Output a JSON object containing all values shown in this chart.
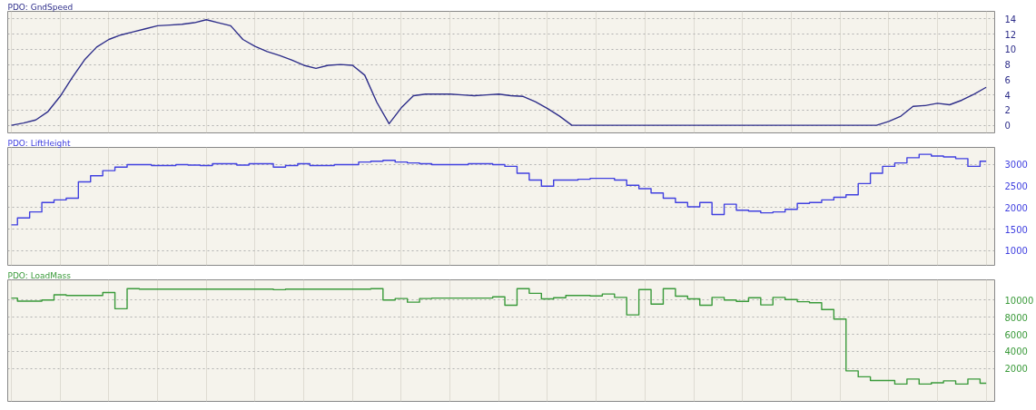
{
  "chart_data": [
    {
      "type": "line",
      "title": "PDO: GndSpeed",
      "categories": [
        null,
        null,
        null,
        null,
        null,
        null,
        null,
        null,
        null,
        null,
        null,
        null,
        null,
        null,
        null,
        null,
        null,
        null,
        null,
        null,
        null,
        null,
        null,
        null,
        null,
        null,
        null,
        null,
        null,
        null,
        null,
        null,
        null,
        null,
        null,
        null,
        null,
        null,
        null,
        null,
        null,
        null,
        null,
        null,
        null,
        null,
        null,
        null,
        null,
        null,
        null,
        null,
        null,
        null,
        null,
        null,
        null,
        null,
        null,
        null,
        null,
        null,
        null,
        null,
        null,
        null,
        null,
        null,
        null,
        null,
        null,
        null,
        null,
        null,
        null,
        null,
        null,
        null,
        null,
        null,
        null
      ],
      "series": [
        {
          "color": "#2e2e8a",
          "values": [
            0,
            0.3,
            0.7,
            1.8,
            3.8,
            6.3,
            8.6,
            10.3,
            11.3,
            11.9,
            12.3,
            12.7,
            13.1,
            13.2,
            13.3,
            13.5,
            13.9,
            13.5,
            13.1,
            11.3,
            10.4,
            9.7,
            9.2,
            8.6,
            7.9,
            7.5,
            7.9,
            8,
            7.9,
            6.6,
            3,
            0.2,
            2.3,
            3.9,
            4.1,
            4.1,
            4.1,
            4,
            3.9,
            4,
            4.1,
            3.9,
            3.8,
            3.1,
            2.2,
            1.2,
            0,
            0,
            0,
            0,
            0,
            0,
            0,
            0,
            0,
            0,
            0,
            0,
            0,
            0,
            0,
            0,
            0,
            0,
            0,
            0,
            0,
            0,
            0,
            0,
            0,
            0,
            0.5,
            1.2,
            2.5,
            2.6,
            2.9,
            2.7,
            3.3,
            4.1,
            5
          ]
        }
      ],
      "ylim": [
        -1,
        15
      ],
      "yticks": [
        0,
        2,
        4,
        6,
        8,
        10,
        12,
        14
      ],
      "grid": true,
      "tick_labels": "y"
    },
    {
      "type": "step",
      "title": "PDO: LiftHeight",
      "categories": [
        null,
        null,
        null,
        null,
        null,
        null,
        null,
        null,
        null,
        null,
        null,
        null,
        null,
        null,
        null,
        null,
        null,
        null,
        null,
        null,
        null,
        null,
        null,
        null,
        null,
        null,
        null,
        null,
        null,
        null,
        null,
        null,
        null,
        null,
        null,
        null,
        null,
        null,
        null,
        null,
        null,
        null,
        null,
        null,
        null,
        null,
        null,
        null,
        null,
        null,
        null,
        null,
        null,
        null,
        null,
        null,
        null,
        null,
        null,
        null,
        null,
        null,
        null,
        null,
        null,
        null,
        null,
        null,
        null,
        null,
        null,
        null,
        null,
        null,
        null,
        null,
        null,
        null,
        null,
        null,
        null
      ],
      "series": [
        {
          "color": "#4040e0",
          "values": [
            1600,
            1760,
            1900,
            2120,
            2180,
            2220,
            2600,
            2740,
            2860,
            2940,
            3000,
            3000,
            2980,
            2980,
            3000,
            2990,
            2980,
            3020,
            3020,
            2990,
            3020,
            3020,
            2940,
            2980,
            3020,
            2980,
            2980,
            3000,
            3000,
            3060,
            3080,
            3100,
            3060,
            3040,
            3020,
            3000,
            3000,
            3000,
            3020,
            3020,
            3000,
            2960,
            2800,
            2640,
            2500,
            2640,
            2640,
            2660,
            2680,
            2680,
            2640,
            2520,
            2440,
            2340,
            2220,
            2120,
            2020,
            2120,
            1840,
            2080,
            1940,
            1920,
            1880,
            1900,
            1960,
            2100,
            2120,
            2180,
            2240,
            2300,
            2560,
            2800,
            2960,
            3040,
            3160,
            3240,
            3200,
            3180,
            3140,
            2960,
            3080
          ]
        }
      ],
      "ylim": [
        660,
        3400
      ],
      "yticks": [
        1000,
        1500,
        2000,
        2500,
        3000
      ],
      "grid": true,
      "tick_labels": "y"
    },
    {
      "type": "step",
      "title": "PDO: LoadMass",
      "categories": [
        null,
        null,
        null,
        null,
        null,
        null,
        null,
        null,
        null,
        null,
        null,
        null,
        null,
        null,
        null,
        null,
        null,
        null,
        null,
        null,
        null,
        null,
        null,
        null,
        null,
        null,
        null,
        null,
        null,
        null,
        null,
        null,
        null,
        null,
        null,
        null,
        null,
        null,
        null,
        null,
        null,
        null,
        null,
        null,
        null,
        null,
        null,
        null,
        null,
        null,
        null,
        null,
        null,
        null,
        null,
        null,
        null,
        null,
        null,
        null,
        null,
        null,
        null,
        null,
        null,
        null,
        null,
        null,
        null,
        null,
        null,
        null,
        null,
        null,
        null,
        null,
        null,
        null,
        null,
        null,
        null
      ],
      "series": [
        {
          "color": "#3a9a3a",
          "values": [
            10220,
            9870,
            9870,
            10000,
            10600,
            10520,
            10520,
            10520,
            10870,
            8980,
            11320,
            11260,
            11260,
            11260,
            11260,
            11260,
            11260,
            11260,
            11260,
            11260,
            11260,
            11260,
            11200,
            11260,
            11260,
            11260,
            11260,
            11260,
            11260,
            11260,
            11320,
            10000,
            10170,
            9740,
            10170,
            10220,
            10220,
            10220,
            10220,
            10220,
            10370,
            9390,
            11320,
            10780,
            10120,
            10260,
            10520,
            10520,
            10470,
            10700,
            10300,
            8260,
            11220,
            9520,
            11320,
            10440,
            10120,
            9390,
            10300,
            10000,
            9830,
            10260,
            9430,
            10300,
            10050,
            9800,
            9680,
            8890,
            7780,
            1730,
            1040,
            600,
            600,
            190,
            780,
            190,
            340,
            560,
            190,
            780,
            280
          ]
        }
      ],
      "ylim": [
        -1830,
        12350
      ],
      "yticks": [
        2000,
        4000,
        6000,
        8000,
        10000
      ],
      "grid": true,
      "tick_labels": "y"
    }
  ]
}
